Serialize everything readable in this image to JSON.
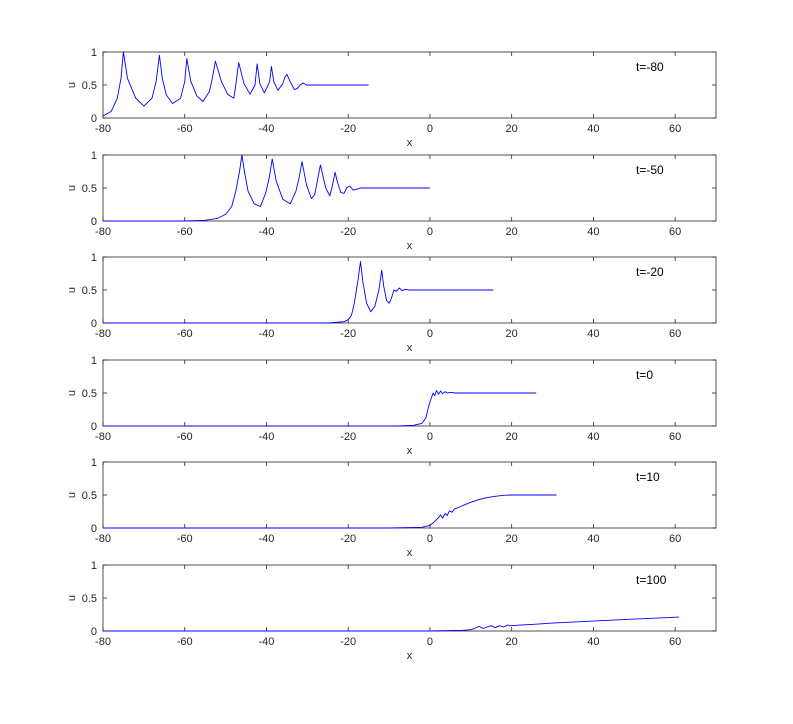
{
  "chart_data": [
    {
      "type": "line",
      "xlabel": "x",
      "ylabel": "u",
      "xlim": [
        -80,
        70
      ],
      "ylim": [
        0,
        1
      ],
      "xticks": [
        -80,
        -60,
        -40,
        -20,
        0,
        20,
        40,
        60
      ],
      "yticks": [
        0,
        0.5,
        1
      ],
      "annotation": "t=-80",
      "line_color": "#0000ff",
      "grid": false,
      "series": [
        {
          "x": [
            -80,
            -78,
            -76.5,
            -75.6,
            -75,
            -74,
            -72,
            -70,
            -68,
            -67,
            -66.2,
            -65.5,
            -64.5,
            -63,
            -61,
            -60,
            -59.5,
            -58.5,
            -57,
            -55.5,
            -54,
            -53.3,
            -52.5,
            -51,
            -49.5,
            -48,
            -47.5,
            -46.8,
            -45.5,
            -44,
            -42.8,
            -42.3,
            -41.6,
            -40.5,
            -39.2,
            -38.8,
            -38.2,
            -37.2,
            -36,
            -35.5,
            -35,
            -34.2,
            -33.2,
            -32.4,
            -31.8,
            -31,
            -30.2,
            -29,
            -25,
            -20,
            -15
          ],
          "y": [
            0.03,
            0.1,
            0.3,
            0.6,
            1.0,
            0.6,
            0.3,
            0.18,
            0.3,
            0.55,
            0.95,
            0.6,
            0.35,
            0.22,
            0.3,
            0.55,
            0.9,
            0.55,
            0.33,
            0.25,
            0.4,
            0.58,
            0.86,
            0.55,
            0.36,
            0.3,
            0.5,
            0.84,
            0.52,
            0.36,
            0.5,
            0.82,
            0.52,
            0.38,
            0.55,
            0.78,
            0.55,
            0.42,
            0.52,
            0.62,
            0.66,
            0.55,
            0.43,
            0.45,
            0.5,
            0.53,
            0.5,
            0.5,
            0.5,
            0.5,
            0.5
          ]
        }
      ]
    },
    {
      "type": "line",
      "xlabel": "x",
      "ylabel": "u",
      "xlim": [
        -80,
        70
      ],
      "ylim": [
        0,
        1
      ],
      "xticks": [
        -80,
        -60,
        -40,
        -20,
        0,
        20,
        40,
        60
      ],
      "yticks": [
        0,
        0.5,
        1
      ],
      "annotation": "t=-50",
      "line_color": "#0000ff",
      "grid": false,
      "series": [
        {
          "x": [
            -80,
            -70,
            -60,
            -55,
            -52,
            -50,
            -48.5,
            -47.5,
            -46.6,
            -46,
            -45.4,
            -44.5,
            -43,
            -41.5,
            -40.2,
            -39.3,
            -38.6,
            -37.6,
            -36,
            -34.2,
            -32.8,
            -32,
            -31.3,
            -30.2,
            -29,
            -28.2,
            -27.5,
            -26.8,
            -25.5,
            -24.5,
            -24,
            -23.2,
            -22.7,
            -21.8,
            -21,
            -20.4,
            -19.6,
            -18.8,
            -18,
            -17,
            -15,
            -10,
            -5,
            0
          ],
          "y": [
            0.0,
            0.0,
            0.0,
            0.01,
            0.04,
            0.1,
            0.22,
            0.45,
            0.75,
            1.0,
            0.75,
            0.45,
            0.26,
            0.22,
            0.42,
            0.66,
            0.94,
            0.6,
            0.33,
            0.26,
            0.45,
            0.66,
            0.9,
            0.55,
            0.34,
            0.4,
            0.62,
            0.85,
            0.5,
            0.38,
            0.5,
            0.74,
            0.6,
            0.43,
            0.42,
            0.5,
            0.53,
            0.47,
            0.48,
            0.5,
            0.5,
            0.5,
            0.5,
            0.5
          ]
        }
      ]
    },
    {
      "type": "line",
      "xlabel": "x",
      "ylabel": "u",
      "xlim": [
        -80,
        70
      ],
      "ylim": [
        0,
        1
      ],
      "xticks": [
        -80,
        -60,
        -40,
        -20,
        0,
        20,
        40,
        60
      ],
      "yticks": [
        0,
        0.5,
        1
      ],
      "annotation": "t=-20",
      "line_color": "#0000ff",
      "grid": false,
      "series": [
        {
          "x": [
            -80,
            -60,
            -40,
            -25,
            -21,
            -20,
            -19.2,
            -18.5,
            -17.6,
            -17,
            -16.4,
            -15.5,
            -14.5,
            -13.5,
            -12.5,
            -11.8,
            -11.3,
            -10.6,
            -10,
            -9.4,
            -8.8,
            -8.2,
            -7.5,
            -6.8,
            -6,
            -5,
            -3,
            0,
            5,
            10,
            15.5
          ],
          "y": [
            0.0,
            0.0,
            0.0,
            0.0,
            0.02,
            0.05,
            0.12,
            0.3,
            0.65,
            0.93,
            0.62,
            0.3,
            0.17,
            0.25,
            0.5,
            0.8,
            0.55,
            0.34,
            0.3,
            0.38,
            0.5,
            0.48,
            0.53,
            0.49,
            0.51,
            0.5,
            0.5,
            0.5,
            0.5,
            0.5,
            0.5
          ]
        }
      ]
    },
    {
      "type": "line",
      "xlabel": "x",
      "ylabel": "u",
      "xlim": [
        -80,
        70
      ],
      "ylim": [
        0,
        1
      ],
      "xticks": [
        -80,
        -60,
        -40,
        -20,
        0,
        20,
        40,
        60
      ],
      "yticks": [
        0,
        0.5,
        1
      ],
      "annotation": "t=0",
      "line_color": "#0000ff",
      "grid": false,
      "series": [
        {
          "x": [
            -80,
            -40,
            -20,
            -8,
            -4,
            -2,
            -1,
            -0.3,
            0.3,
            0.8,
            1.2,
            1.6,
            2.1,
            2.6,
            3.1,
            3.7,
            4.3,
            5,
            6,
            8,
            12,
            20,
            26
          ],
          "y": [
            0.0,
            0.0,
            0.0,
            0.0,
            0.01,
            0.04,
            0.12,
            0.3,
            0.42,
            0.5,
            0.46,
            0.54,
            0.48,
            0.53,
            0.49,
            0.52,
            0.5,
            0.51,
            0.5,
            0.5,
            0.5,
            0.5,
            0.5
          ]
        }
      ]
    },
    {
      "type": "line",
      "xlabel": "x",
      "ylabel": "u",
      "xlim": [
        -80,
        70
      ],
      "ylim": [
        0,
        1
      ],
      "xticks": [
        -80,
        -60,
        -40,
        -20,
        0,
        20,
        40,
        60
      ],
      "yticks": [
        0,
        0.5,
        1
      ],
      "annotation": "t=10",
      "line_color": "#0000ff",
      "grid": false,
      "series": [
        {
          "x": [
            -80,
            -40,
            -10,
            -2,
            0,
            1,
            2,
            2.6,
            3.1,
            3.7,
            4.2,
            4.8,
            5.4,
            6,
            7,
            8,
            10,
            12,
            14,
            16,
            18,
            20,
            24,
            31
          ],
          "y": [
            0.0,
            0.0,
            0.0,
            0.01,
            0.04,
            0.09,
            0.15,
            0.2,
            0.15,
            0.22,
            0.19,
            0.26,
            0.24,
            0.29,
            0.31,
            0.34,
            0.39,
            0.43,
            0.46,
            0.48,
            0.495,
            0.5,
            0.5,
            0.5
          ]
        }
      ]
    },
    {
      "type": "line",
      "xlabel": "x",
      "ylabel": "u",
      "xlim": [
        -80,
        70
      ],
      "ylim": [
        0,
        1
      ],
      "xticks": [
        -80,
        -60,
        -40,
        -20,
        0,
        20,
        40,
        60
      ],
      "yticks": [
        0,
        0.5,
        1
      ],
      "annotation": "t=100",
      "line_color": "#0000ff",
      "grid": false,
      "series": [
        {
          "x": [
            -80,
            -40,
            0,
            8,
            10,
            11,
            12,
            13,
            14,
            15,
            16,
            17,
            18,
            19,
            20,
            22,
            25,
            30,
            40,
            50,
            61
          ],
          "y": [
            0.0,
            0.0,
            0.0,
            0.01,
            0.02,
            0.04,
            0.07,
            0.04,
            0.06,
            0.08,
            0.05,
            0.08,
            0.06,
            0.09,
            0.08,
            0.09,
            0.1,
            0.12,
            0.15,
            0.18,
            0.21
          ]
        }
      ]
    }
  ]
}
